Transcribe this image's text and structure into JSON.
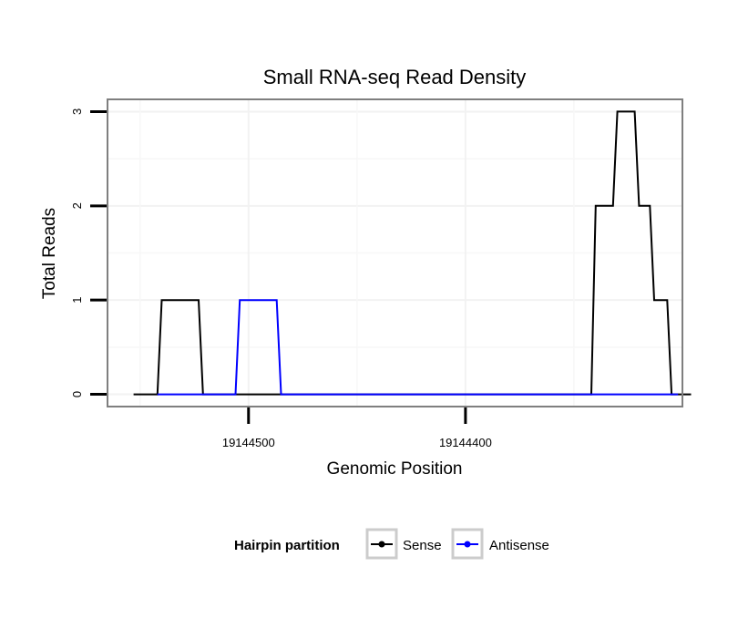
{
  "chart_data": {
    "type": "line",
    "title": "Small RNA-seq Read Density",
    "xlabel": "Genomic Position",
    "ylabel": "Total Reads",
    "x_axis_reversed": true,
    "xlim": [
      19144300,
      19144565
    ],
    "ylim": [
      -0.13,
      3.13
    ],
    "grid": true,
    "y_ticks": [
      {
        "value": 0,
        "label": "0"
      },
      {
        "value": 1,
        "label": "1"
      },
      {
        "value": 2,
        "label": "2"
      },
      {
        "value": 3,
        "label": "3"
      }
    ],
    "x_ticks": [
      {
        "value": 19144500,
        "label": "19144500"
      },
      {
        "value": 19144400,
        "label": "19144400"
      }
    ],
    "legend": {
      "title": "Hairpin partition",
      "position": "bottom"
    },
    "series": [
      {
        "name": "Sense",
        "color": "#000000",
        "x": [
          19144553,
          19144542,
          19144540,
          19144523,
          19144521,
          19144503,
          19144501,
          19144342,
          19144340,
          19144332,
          19144330,
          19144322,
          19144320,
          19144315,
          19144313,
          19144307,
          19144305,
          19144301,
          19144299,
          19144296
        ],
        "y": [
          0,
          0,
          1,
          1,
          0,
          0,
          0,
          0,
          2,
          2,
          3,
          3,
          2,
          2,
          1,
          1,
          0,
          0,
          0,
          0
        ]
      },
      {
        "name": "Antisense",
        "color": "#0000ff",
        "x": [
          19144542,
          19144523,
          19144506,
          19144504,
          19144487,
          19144485,
          19144302
        ],
        "y": [
          0,
          0,
          0,
          1,
          1,
          0,
          0
        ]
      }
    ]
  }
}
